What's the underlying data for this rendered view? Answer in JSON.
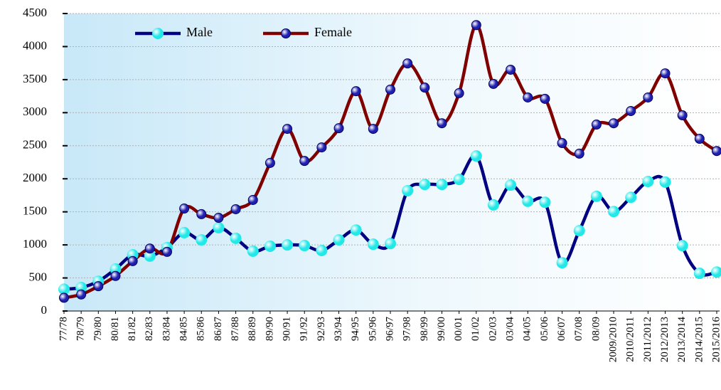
{
  "chart_data": {
    "type": "line",
    "categories": [
      "77/78",
      "78/79",
      "79/80",
      "80/81",
      "81/82",
      "82/83",
      "83/84",
      "84/85",
      "85/86",
      "86/87",
      "87/88",
      "88/89",
      "89/90",
      "90/91",
      "91/92",
      "92/93",
      "93/94",
      "94/95",
      "95/96",
      "96/97",
      "97/98",
      "98/99",
      "99/00",
      "00/01",
      "01/02",
      "02/03",
      "03/04",
      "04/05",
      "05/06",
      "06/07",
      "07/08",
      "08/09",
      "2009/2010",
      "2010/2011",
      "2011/2012",
      "2012/2013",
      "2013/2014",
      "2014/2015",
      "2015/2016"
    ],
    "series": [
      {
        "name": "Male",
        "color": "#000080",
        "marker_color": "#22e8e8",
        "values": [
          330,
          355,
          450,
          635,
          850,
          830,
          960,
          1185,
          1075,
          1260,
          1100,
          905,
          980,
          1000,
          990,
          915,
          1075,
          1225,
          1010,
          1020,
          1820,
          1915,
          1915,
          1990,
          2345,
          1605,
          1905,
          1660,
          1645,
          730,
          1215,
          1735,
          1505,
          1720,
          1960,
          1950,
          990,
          570,
          590
        ]
      },
      {
        "name": "Female",
        "color": "#800000",
        "marker_color": "#2020b0",
        "values": [
          200,
          250,
          375,
          530,
          755,
          945,
          895,
          1550,
          1465,
          1410,
          1540,
          1680,
          2240,
          2755,
          2270,
          2475,
          2765,
          3325,
          2755,
          3350,
          3745,
          3380,
          2840,
          3295,
          4325,
          3435,
          3650,
          3230,
          3210,
          2540,
          2380,
          2820,
          2840,
          3025,
          3230,
          3595,
          2960,
          2605,
          2420
        ]
      }
    ],
    "ylim": [
      0,
      4500
    ],
    "yticks": [
      0,
      500,
      1000,
      1500,
      2000,
      2500,
      3000,
      3500,
      4000,
      4500
    ],
    "grid": true
  }
}
